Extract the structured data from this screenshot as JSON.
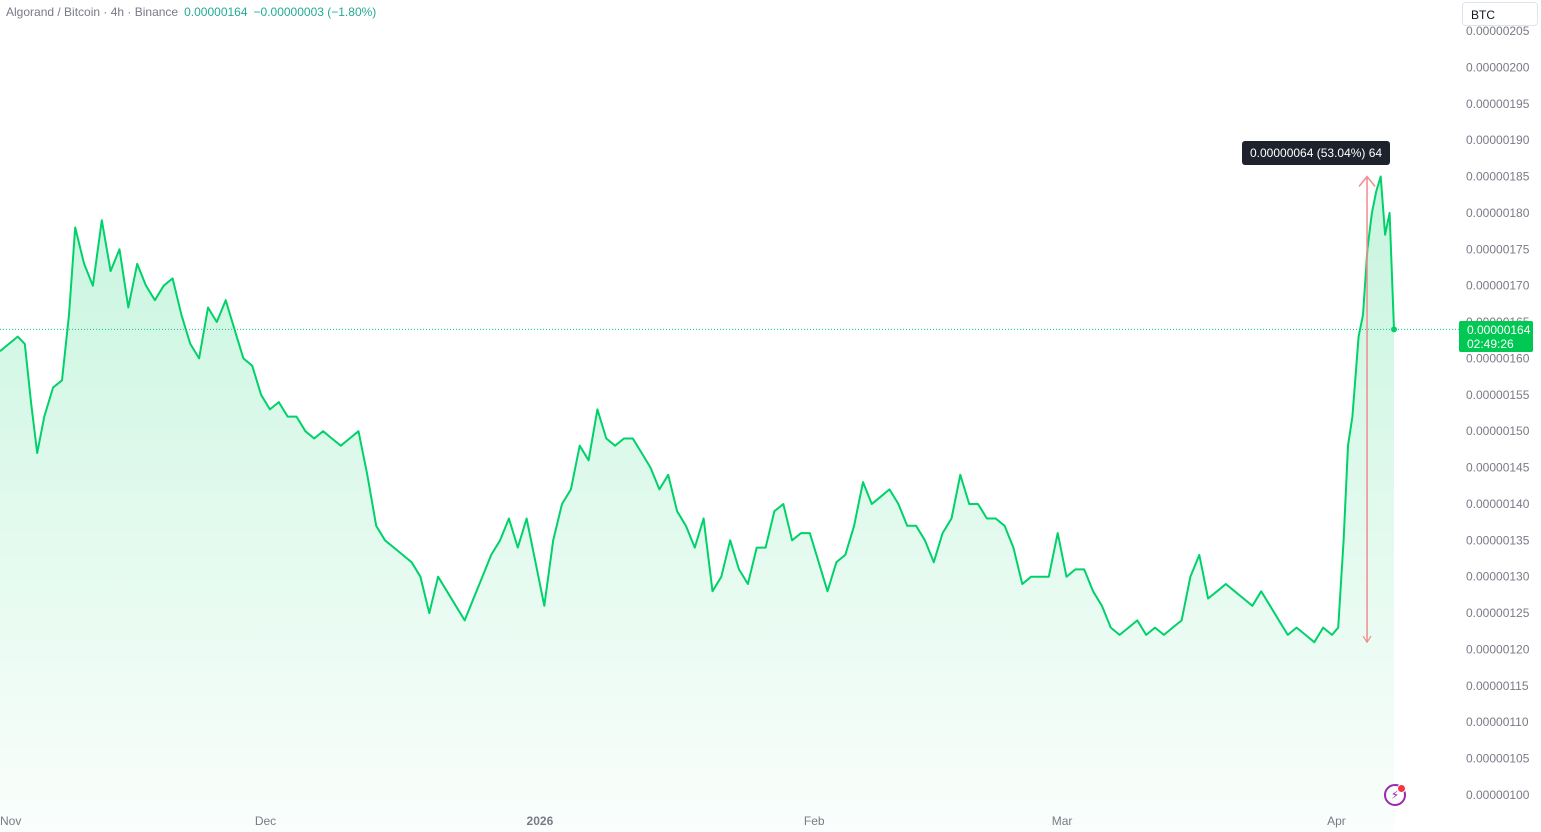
{
  "legend": {
    "symbol": "Algorand / Bitcoin · 4h · Binance",
    "price": "0.00000164",
    "change": "−0.00000003 (−1.80%)"
  },
  "currency_button": "BTC",
  "last_price": {
    "value": "0.00000164",
    "countdown": "02:49:26"
  },
  "measure": {
    "label": "0.00000064 (53.04%) 64"
  },
  "colors": {
    "line": "#00d26a",
    "fill": "#00d26a",
    "measure": "#f28b8b",
    "last_label": "#00c853"
  },
  "icons": {
    "alert": "lightning-icon"
  },
  "chart_data": {
    "type": "area",
    "y_ticks": [
      "0.00000205",
      "0.00000200",
      "0.00000195",
      "0.00000190",
      "0.00000185",
      "0.00000180",
      "0.00000175",
      "0.00000170",
      "0.00000165",
      "0.00000160",
      "0.00000155",
      "0.00000150",
      "0.00000145",
      "0.00000140",
      "0.00000135",
      "0.00000130",
      "0.00000125",
      "0.00000120",
      "0.00000115",
      "0.00000110",
      "0.00000105",
      "0.00000100"
    ],
    "y_tick_values": [
      2.05,
      2.0,
      1.95,
      1.9,
      1.85,
      1.8,
      1.75,
      1.7,
      1.65,
      1.6,
      1.55,
      1.5,
      1.45,
      1.4,
      1.35,
      1.3,
      1.25,
      1.2,
      1.15,
      1.1,
      1.05,
      1.0
    ],
    "ylim": [
      1.0,
      2.05
    ],
    "y_unit_note": "values ×1e-6 BTC",
    "x_ticks": [
      {
        "label": "Nov",
        "day": 0
      },
      {
        "label": "Dec",
        "day": 30
      },
      {
        "label": "2026",
        "day": 61
      },
      {
        "label": "Feb",
        "day": 92
      },
      {
        "label": "Mar",
        "day": 120
      },
      {
        "label": "Apr",
        "day": 151
      }
    ],
    "xlim": [
      0,
      157.5
    ],
    "series": [
      {
        "points": [
          [
            0,
            1.61
          ],
          [
            1,
            1.62
          ],
          [
            2,
            1.63
          ],
          [
            2.8,
            1.62
          ],
          [
            3.5,
            1.54
          ],
          [
            4.2,
            1.47
          ],
          [
            5,
            1.52
          ],
          [
            6,
            1.56
          ],
          [
            7,
            1.57
          ],
          [
            7.8,
            1.66
          ],
          [
            8.5,
            1.78
          ],
          [
            9.5,
            1.73
          ],
          [
            10.5,
            1.7
          ],
          [
            11.5,
            1.79
          ],
          [
            12.5,
            1.72
          ],
          [
            13.5,
            1.75
          ],
          [
            14.5,
            1.67
          ],
          [
            15.5,
            1.73
          ],
          [
            16.5,
            1.7
          ],
          [
            17.5,
            1.68
          ],
          [
            18.5,
            1.7
          ],
          [
            19.5,
            1.71
          ],
          [
            20.5,
            1.66
          ],
          [
            21.5,
            1.62
          ],
          [
            22.5,
            1.6
          ],
          [
            23.5,
            1.67
          ],
          [
            24.5,
            1.65
          ],
          [
            25.5,
            1.68
          ],
          [
            26.5,
            1.64
          ],
          [
            27.5,
            1.6
          ],
          [
            28.5,
            1.59
          ],
          [
            29.5,
            1.55
          ],
          [
            30.5,
            1.53
          ],
          [
            31.5,
            1.54
          ],
          [
            32.5,
            1.52
          ],
          [
            33.5,
            1.52
          ],
          [
            34.5,
            1.5
          ],
          [
            35.5,
            1.49
          ],
          [
            36.5,
            1.5
          ],
          [
            37.5,
            1.49
          ],
          [
            38.5,
            1.48
          ],
          [
            39.5,
            1.49
          ],
          [
            40.5,
            1.5
          ],
          [
            41.5,
            1.44
          ],
          [
            42.5,
            1.37
          ],
          [
            43.5,
            1.35
          ],
          [
            44.5,
            1.34
          ],
          [
            45.5,
            1.33
          ],
          [
            46.5,
            1.32
          ],
          [
            47.5,
            1.3
          ],
          [
            48.5,
            1.25
          ],
          [
            49.5,
            1.3
          ],
          [
            50.5,
            1.28
          ],
          [
            51.5,
            1.26
          ],
          [
            52.5,
            1.24
          ],
          [
            53.5,
            1.27
          ],
          [
            54.5,
            1.3
          ],
          [
            55.5,
            1.33
          ],
          [
            56.5,
            1.35
          ],
          [
            57.5,
            1.38
          ],
          [
            58.5,
            1.34
          ],
          [
            59.5,
            1.38
          ],
          [
            60.5,
            1.32
          ],
          [
            61.5,
            1.26
          ],
          [
            62.5,
            1.35
          ],
          [
            63.5,
            1.4
          ],
          [
            64.5,
            1.42
          ],
          [
            65.5,
            1.48
          ],
          [
            66.5,
            1.46
          ],
          [
            67.5,
            1.53
          ],
          [
            68.5,
            1.49
          ],
          [
            69.5,
            1.48
          ],
          [
            70.5,
            1.49
          ],
          [
            71.5,
            1.49
          ],
          [
            72.5,
            1.47
          ],
          [
            73.5,
            1.45
          ],
          [
            74.5,
            1.42
          ],
          [
            75.5,
            1.44
          ],
          [
            76.5,
            1.39
          ],
          [
            77.5,
            1.37
          ],
          [
            78.5,
            1.34
          ],
          [
            79.5,
            1.38
          ],
          [
            80.5,
            1.28
          ],
          [
            81.5,
            1.3
          ],
          [
            82.5,
            1.35
          ],
          [
            83.5,
            1.31
          ],
          [
            84.5,
            1.29
          ],
          [
            85.5,
            1.34
          ],
          [
            86.5,
            1.34
          ],
          [
            87.5,
            1.39
          ],
          [
            88.5,
            1.4
          ],
          [
            89.5,
            1.35
          ],
          [
            90.5,
            1.36
          ],
          [
            91.5,
            1.36
          ],
          [
            92.5,
            1.32
          ],
          [
            93.5,
            1.28
          ],
          [
            94.5,
            1.32
          ],
          [
            95.5,
            1.33
          ],
          [
            96.5,
            1.37
          ],
          [
            97.5,
            1.43
          ],
          [
            98.5,
            1.4
          ],
          [
            99.5,
            1.41
          ],
          [
            100.5,
            1.42
          ],
          [
            101.5,
            1.4
          ],
          [
            102.5,
            1.37
          ],
          [
            103.5,
            1.37
          ],
          [
            104.5,
            1.35
          ],
          [
            105.5,
            1.32
          ],
          [
            106.5,
            1.36
          ],
          [
            107.5,
            1.38
          ],
          [
            108.5,
            1.44
          ],
          [
            109.5,
            1.4
          ],
          [
            110.5,
            1.4
          ],
          [
            111.5,
            1.38
          ],
          [
            112.5,
            1.38
          ],
          [
            113.5,
            1.37
          ],
          [
            114.5,
            1.34
          ],
          [
            115.5,
            1.29
          ],
          [
            116.5,
            1.3
          ],
          [
            117.5,
            1.3
          ],
          [
            118.5,
            1.3
          ],
          [
            119.5,
            1.36
          ],
          [
            120.5,
            1.3
          ],
          [
            121.5,
            1.31
          ],
          [
            122.5,
            1.31
          ],
          [
            123.5,
            1.28
          ],
          [
            124.5,
            1.26
          ],
          [
            125.5,
            1.23
          ],
          [
            126.5,
            1.22
          ],
          [
            127.5,
            1.23
          ],
          [
            128.5,
            1.24
          ],
          [
            129.5,
            1.22
          ],
          [
            130.5,
            1.23
          ],
          [
            131.5,
            1.22
          ],
          [
            132.5,
            1.23
          ],
          [
            133.5,
            1.24
          ],
          [
            134.5,
            1.3
          ],
          [
            135.5,
            1.33
          ],
          [
            136.5,
            1.27
          ],
          [
            137.5,
            1.28
          ],
          [
            138.5,
            1.29
          ],
          [
            139.5,
            1.28
          ],
          [
            140.5,
            1.27
          ],
          [
            141.5,
            1.26
          ],
          [
            142.5,
            1.28
          ],
          [
            143.5,
            1.26
          ],
          [
            144.5,
            1.24
          ],
          [
            145.5,
            1.22
          ],
          [
            146.5,
            1.23
          ],
          [
            147.5,
            1.22
          ],
          [
            148.5,
            1.21
          ],
          [
            149.5,
            1.23
          ],
          [
            150.5,
            1.22
          ],
          [
            151.2,
            1.23
          ],
          [
            151.8,
            1.35
          ],
          [
            152.3,
            1.48
          ],
          [
            152.8,
            1.52
          ],
          [
            153.5,
            1.63
          ],
          [
            154.0,
            1.66
          ],
          [
            154.5,
            1.75
          ],
          [
            155.0,
            1.8
          ],
          [
            155.5,
            1.83
          ],
          [
            156.0,
            1.85
          ],
          [
            156.5,
            1.77
          ],
          [
            157.0,
            1.8
          ],
          [
            157.5,
            1.64
          ]
        ]
      }
    ],
    "last_value": 1.64,
    "measure_from": [
      150.5,
      1.21
    ],
    "measure_to": [
      150.5,
      1.85
    ]
  }
}
